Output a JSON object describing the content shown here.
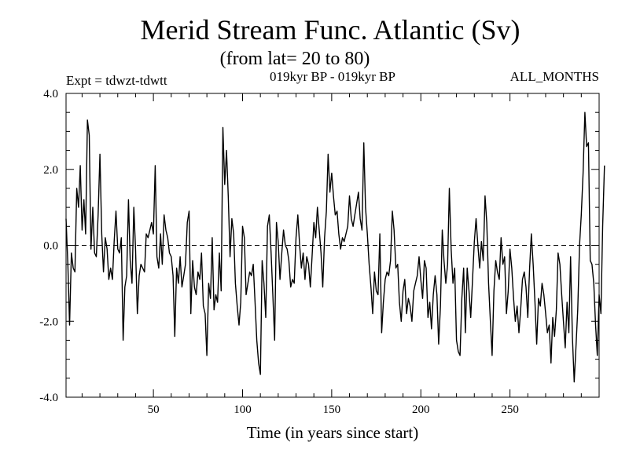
{
  "chart_data": {
    "type": "line",
    "title": "Merid Stream Func. Atlantic (Sv)",
    "subtitle": "(from lat= 20 to 80)",
    "annotations": {
      "left": "Expt = tdwzt-tdwtt",
      "center": "019kyr BP - 019kyr BP",
      "right": "ALL_MONTHS"
    },
    "xlabel": "Time (in years since start)",
    "ylabel": "",
    "xlim": [
      1,
      300
    ],
    "ylim": [
      -4.0,
      4.0
    ],
    "x_ticks": [
      50,
      100,
      150,
      200,
      250
    ],
    "y_ticks": [
      "-4.0",
      "-2.0",
      "0.0",
      "2.0",
      "4.0"
    ],
    "reference_line": {
      "y": 0,
      "style": "dashed"
    },
    "grid": false,
    "series": [
      {
        "x_start": 1,
        "x_step": 1,
        "values": [
          0.7,
          -0.5,
          -2.1,
          -0.2,
          -0.6,
          -0.7,
          1.5,
          1.0,
          2.1,
          0.4,
          1.2,
          0.3,
          3.3,
          2.9,
          -0.1,
          1.0,
          -0.2,
          -0.3,
          0.8,
          2.4,
          0.3,
          -0.7,
          0.2,
          -0.1,
          -0.9,
          -0.6,
          -0.9,
          0.1,
          0.9,
          -0.1,
          -0.2,
          0.2,
          -2.5,
          -1.1,
          -0.8,
          1.2,
          -0.4,
          -1.0,
          1.0,
          -0.1,
          -1.8,
          -0.8,
          -0.5,
          -0.6,
          -0.7,
          0.3,
          0.2,
          0.4,
          0.6,
          0.3,
          2.1,
          -0.3,
          -0.6,
          0.3,
          -0.5,
          0.8,
          0.4,
          0.2,
          -0.2,
          -0.3,
          -0.8,
          -2.4,
          -0.6,
          -1.0,
          -0.3,
          -1.1,
          -0.8,
          -0.5,
          0.6,
          0.9,
          -1.8,
          -0.4,
          -1.1,
          -1.3,
          -0.7,
          -0.9,
          -0.2,
          -1.6,
          -1.8,
          -2.9,
          -1.0,
          -1.4,
          0.2,
          -1.7,
          -1.3,
          -1.5,
          -0.2,
          -1.2,
          3.1,
          1.6,
          2.5,
          1.3,
          -0.3,
          0.7,
          0.3,
          -1.0,
          -1.6,
          -2.1,
          -1.5,
          0.5,
          0.2,
          -1.3,
          -1.0,
          -0.7,
          -0.8,
          -0.5,
          -1.5,
          -2.5,
          -3.1,
          -3.4,
          -0.4,
          -1.0,
          -1.9,
          0.5,
          0.8,
          -0.2,
          -1.3,
          -2.5,
          0.6,
          0.1,
          -0.9,
          -0.2,
          0.4,
          0.0,
          -0.1,
          -0.4,
          -1.1,
          -0.9,
          -1.0,
          0.2,
          0.8,
          0.0,
          -0.6,
          -0.2,
          -0.9,
          -0.3,
          -0.5,
          -1.1,
          -0.3,
          0.6,
          0.2,
          1.0,
          0.4,
          -0.2,
          -1.1,
          0.2,
          0.9,
          2.4,
          1.4,
          1.9,
          1.3,
          0.8,
          0.9,
          0.3,
          -0.1,
          0.2,
          0.1,
          0.3,
          0.5,
          1.3,
          0.7,
          0.5,
          0.8,
          1.1,
          1.4,
          0.7,
          0.4,
          2.7,
          1.0,
          0.3,
          -0.5,
          -1.1,
          -1.8,
          -0.7,
          -1.2,
          -1.3,
          0.3,
          -2.3,
          -1.5,
          -0.9,
          -0.7,
          -0.8,
          -0.4,
          0.9,
          0.4,
          -0.6,
          -0.5,
          -1.5,
          -2.0,
          -1.2,
          -0.9,
          -1.8,
          -1.4,
          -1.6,
          -2.0,
          -1.2,
          -1.0,
          -0.8,
          -0.3,
          -0.9,
          -1.4,
          -0.4,
          -0.6,
          -1.9,
          -1.5,
          -2.2,
          -1.3,
          -0.8,
          -1.3,
          -2.6,
          -1.6,
          0.4,
          -0.4,
          -1.0,
          -0.5,
          1.5,
          -0.1,
          -1.0,
          -0.6,
          -2.5,
          -2.8,
          -2.9,
          -1.4,
          -0.6,
          -2.3,
          -0.6,
          -1.2,
          -1.9,
          -0.9,
          0.1,
          0.7,
          0.0,
          -0.6,
          0.1,
          -0.4,
          1.3,
          0.6,
          -1.0,
          -2.0,
          -2.9,
          -1.2,
          -0.4,
          -0.7,
          -0.9,
          0.2,
          -0.5,
          -0.3,
          -1.8,
          -1.2,
          -0.1,
          -0.6,
          -1.4,
          -2.0,
          -1.6,
          -2.3,
          -1.7,
          -0.9,
          -0.7,
          -1.1,
          -1.9,
          -0.6,
          0.3,
          -0.5,
          -1.5,
          -2.6,
          -1.4,
          -1.6,
          -1.0,
          -1.3,
          -1.8,
          -2.3,
          -2.1,
          -3.1,
          -1.9,
          -2.4,
          -1.7,
          -0.2,
          -0.5,
          -1.3,
          -2.0,
          -2.7,
          -1.5,
          -2.3,
          -0.3,
          -2.4,
          -3.6,
          -2.7,
          -1.7,
          0.0,
          0.8,
          1.9,
          3.5,
          2.6,
          2.7,
          -0.4,
          -0.5,
          -1.0,
          -2.1,
          -2.9,
          -1.3,
          -1.8,
          0.5,
          2.1
        ]
      }
    ]
  }
}
